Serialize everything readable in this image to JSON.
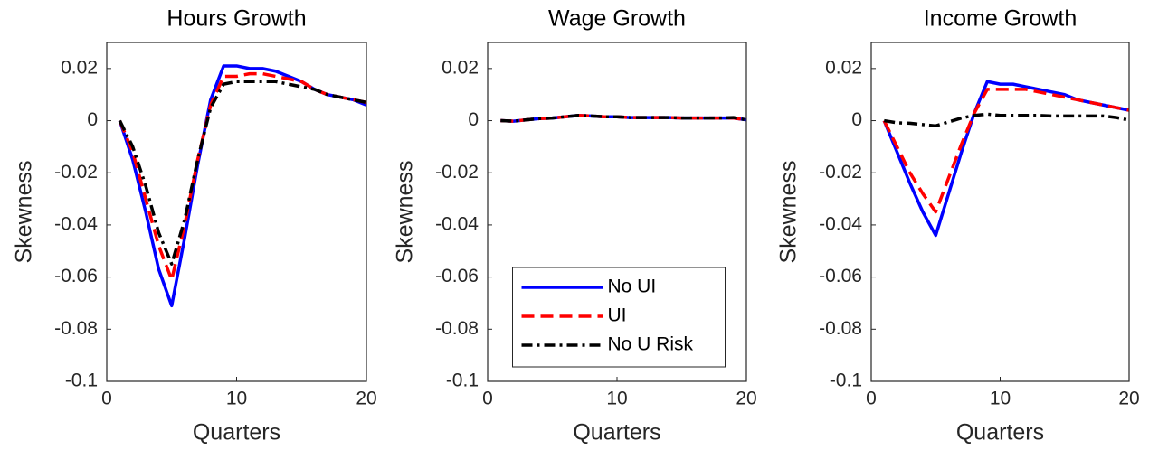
{
  "chart_data": [
    {
      "type": "line",
      "title": "Hours Growth",
      "xlabel": "Quarters",
      "ylabel": "Skewness",
      "x": [
        1,
        2,
        3,
        4,
        5,
        6,
        7,
        8,
        9,
        10,
        11,
        12,
        13,
        14,
        15,
        16,
        17,
        18,
        19,
        20
      ],
      "xlim": [
        0,
        20
      ],
      "xticks": [
        0,
        10,
        20
      ],
      "ylim": [
        -0.1,
        0.03
      ],
      "yticks": [
        -0.1,
        -0.08,
        -0.06,
        -0.04,
        -0.02,
        0,
        0.02
      ],
      "grid": false,
      "series": [
        {
          "name": "No UI",
          "color": "#0000ff",
          "style": "solid",
          "values": [
            0,
            -0.015,
            -0.035,
            -0.057,
            -0.071,
            -0.045,
            -0.017,
            0.008,
            0.021,
            0.021,
            0.02,
            0.02,
            0.019,
            0.017,
            0.015,
            0.012,
            0.01,
            0.009,
            0.008,
            0.006
          ]
        },
        {
          "name": "UI",
          "color": "#ff0000",
          "style": "dashed",
          "values": [
            0,
            -0.012,
            -0.03,
            -0.048,
            -0.061,
            -0.04,
            -0.015,
            0.006,
            0.017,
            0.017,
            0.018,
            0.018,
            0.017,
            0.016,
            0.015,
            0.012,
            0.01,
            0.009,
            0.008,
            0.007
          ]
        },
        {
          "name": "No U Risk",
          "color": "#000000",
          "style": "dashdot",
          "values": [
            0,
            -0.01,
            -0.025,
            -0.043,
            -0.055,
            -0.038,
            -0.015,
            0.005,
            0.014,
            0.015,
            0.015,
            0.015,
            0.015,
            0.014,
            0.013,
            0.012,
            0.01,
            0.009,
            0.008,
            0.007
          ]
        }
      ]
    },
    {
      "type": "line",
      "title": "Wage Growth",
      "xlabel": "Quarters",
      "ylabel": "Skewness",
      "x": [
        1,
        2,
        3,
        4,
        5,
        6,
        7,
        8,
        9,
        10,
        11,
        12,
        13,
        14,
        15,
        16,
        17,
        18,
        19,
        20
      ],
      "xlim": [
        0,
        20
      ],
      "xticks": [
        0,
        10,
        20
      ],
      "ylim": [
        -0.1,
        0.03
      ],
      "yticks": [
        -0.1,
        -0.08,
        -0.06,
        -0.04,
        -0.02,
        0,
        0.02
      ],
      "grid": false,
      "legend": "lower center",
      "series": [
        {
          "name": "No UI",
          "color": "#0000ff",
          "style": "solid",
          "values": [
            0,
            -0.0002,
            0.0003,
            0.0008,
            0.001,
            0.0015,
            0.002,
            0.0018,
            0.0015,
            0.0015,
            0.0012,
            0.0012,
            0.0012,
            0.0012,
            0.001,
            0.001,
            0.001,
            0.001,
            0.001,
            0.0003
          ]
        },
        {
          "name": "UI",
          "color": "#ff0000",
          "style": "dashed",
          "values": [
            0,
            -0.0002,
            0.0003,
            0.0008,
            0.001,
            0.0015,
            0.002,
            0.0018,
            0.0015,
            0.0015,
            0.0012,
            0.0012,
            0.0012,
            0.0012,
            0.001,
            0.001,
            0.001,
            0.001,
            0.001,
            0.0003
          ]
        },
        {
          "name": "No U Risk",
          "color": "#000000",
          "style": "dashdot",
          "values": [
            0,
            -0.0002,
            0.0003,
            0.0008,
            0.001,
            0.0015,
            0.002,
            0.0018,
            0.0015,
            0.0015,
            0.0012,
            0.0012,
            0.0012,
            0.0012,
            0.001,
            0.001,
            0.001,
            0.001,
            0.0012,
            0.0003
          ]
        }
      ]
    },
    {
      "type": "line",
      "title": "Income Growth",
      "xlabel": "Quarters",
      "ylabel": "Skewness",
      "x": [
        1,
        2,
        3,
        4,
        5,
        6,
        7,
        8,
        9,
        10,
        11,
        12,
        13,
        14,
        15,
        16,
        17,
        18,
        19,
        20
      ],
      "xlim": [
        0,
        20
      ],
      "xticks": [
        0,
        10,
        20
      ],
      "ylim": [
        -0.1,
        0.03
      ],
      "yticks": [
        -0.1,
        -0.08,
        -0.06,
        -0.04,
        -0.02,
        0,
        0.02
      ],
      "grid": false,
      "series": [
        {
          "name": "No UI",
          "color": "#0000ff",
          "style": "solid",
          "values": [
            0,
            -0.012,
            -0.024,
            -0.035,
            -0.044,
            -0.028,
            -0.012,
            0.003,
            0.015,
            0.014,
            0.014,
            0.013,
            0.012,
            0.011,
            0.01,
            0.008,
            0.007,
            0.006,
            0.005,
            0.004
          ]
        },
        {
          "name": "UI",
          "color": "#ff0000",
          "style": "dashed",
          "values": [
            0,
            -0.01,
            -0.02,
            -0.028,
            -0.035,
            -0.022,
            -0.009,
            0.003,
            0.012,
            0.012,
            0.012,
            0.012,
            0.011,
            0.01,
            0.009,
            0.008,
            0.007,
            0.006,
            0.005,
            0.004
          ]
        },
        {
          "name": "No U Risk",
          "color": "#000000",
          "style": "dashdot",
          "values": [
            0,
            -0.0008,
            -0.001,
            -0.0015,
            -0.002,
            -0.0005,
            0.001,
            0.002,
            0.0025,
            0.002,
            0.002,
            0.002,
            0.002,
            0.0018,
            0.0018,
            0.0018,
            0.0018,
            0.0018,
            0.0012,
            0.0002
          ]
        }
      ]
    }
  ]
}
